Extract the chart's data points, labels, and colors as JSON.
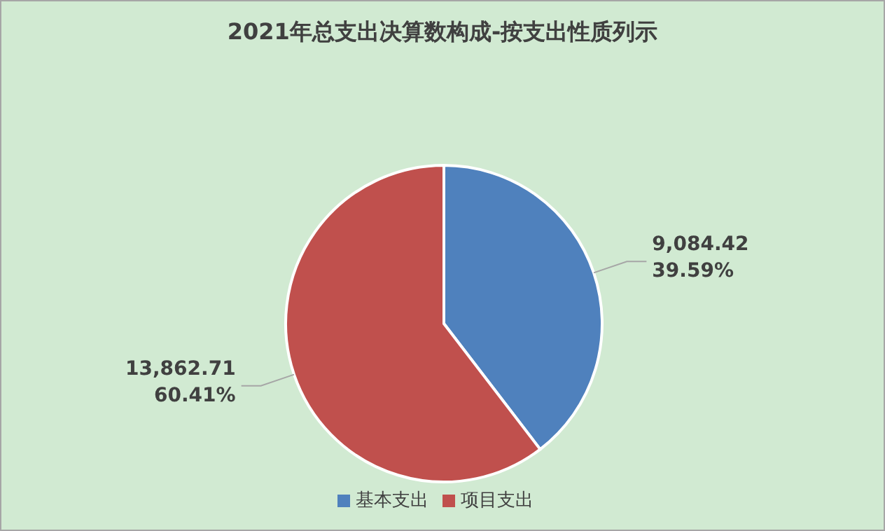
{
  "chart_data": {
    "type": "pie",
    "title": "2021年总支出决算数构成-按支出性质列示",
    "categories": [
      "基本支出",
      "项目支出"
    ],
    "values": [
      9084.42,
      13862.71
    ],
    "colors": [
      "#4f81bd",
      "#c0504d"
    ],
    "value_labels": [
      "9,084.42\n39.59%",
      "13,862.71\n60.41%"
    ],
    "legend": "bottom"
  }
}
